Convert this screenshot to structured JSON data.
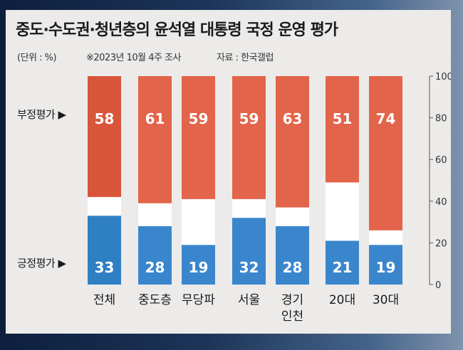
{
  "title": "중도·수도권·청년층의 윤석열 대통령 국정 운영 평가",
  "unit_note": "(단위 : %)",
  "date_note": "※2023년 10월 4주 조사",
  "source_note": "자료 : 한국갤럽",
  "negative_label": "부정평가 ▶",
  "positive_label": "긍정평가 ▶",
  "chart_data": {
    "type": "bar",
    "stacked": true,
    "categories": [
      [
        "전체"
      ],
      [
        "중도층"
      ],
      [
        "무당파"
      ],
      [
        "서울"
      ],
      [
        "경기",
        "인천"
      ],
      [
        "20대"
      ],
      [
        "30대"
      ]
    ],
    "series": [
      {
        "name": "긍정평가",
        "values": [
          33,
          28,
          19,
          32,
          28,
          21,
          19
        ]
      },
      {
        "name": "부정평가",
        "values": [
          58,
          61,
          59,
          59,
          63,
          51,
          74
        ]
      }
    ],
    "ylim": [
      0,
      100
    ],
    "yticks": [
      0,
      20,
      40,
      60,
      80,
      100
    ],
    "y_axis_side": "right",
    "grid": false,
    "legend": "none",
    "colors": {
      "positive": "#3a86cc",
      "positive_first": "#2f7fc3",
      "negative": "#e2644a",
      "negative_first": "#d9553a",
      "remainder": "#ffffff"
    }
  }
}
